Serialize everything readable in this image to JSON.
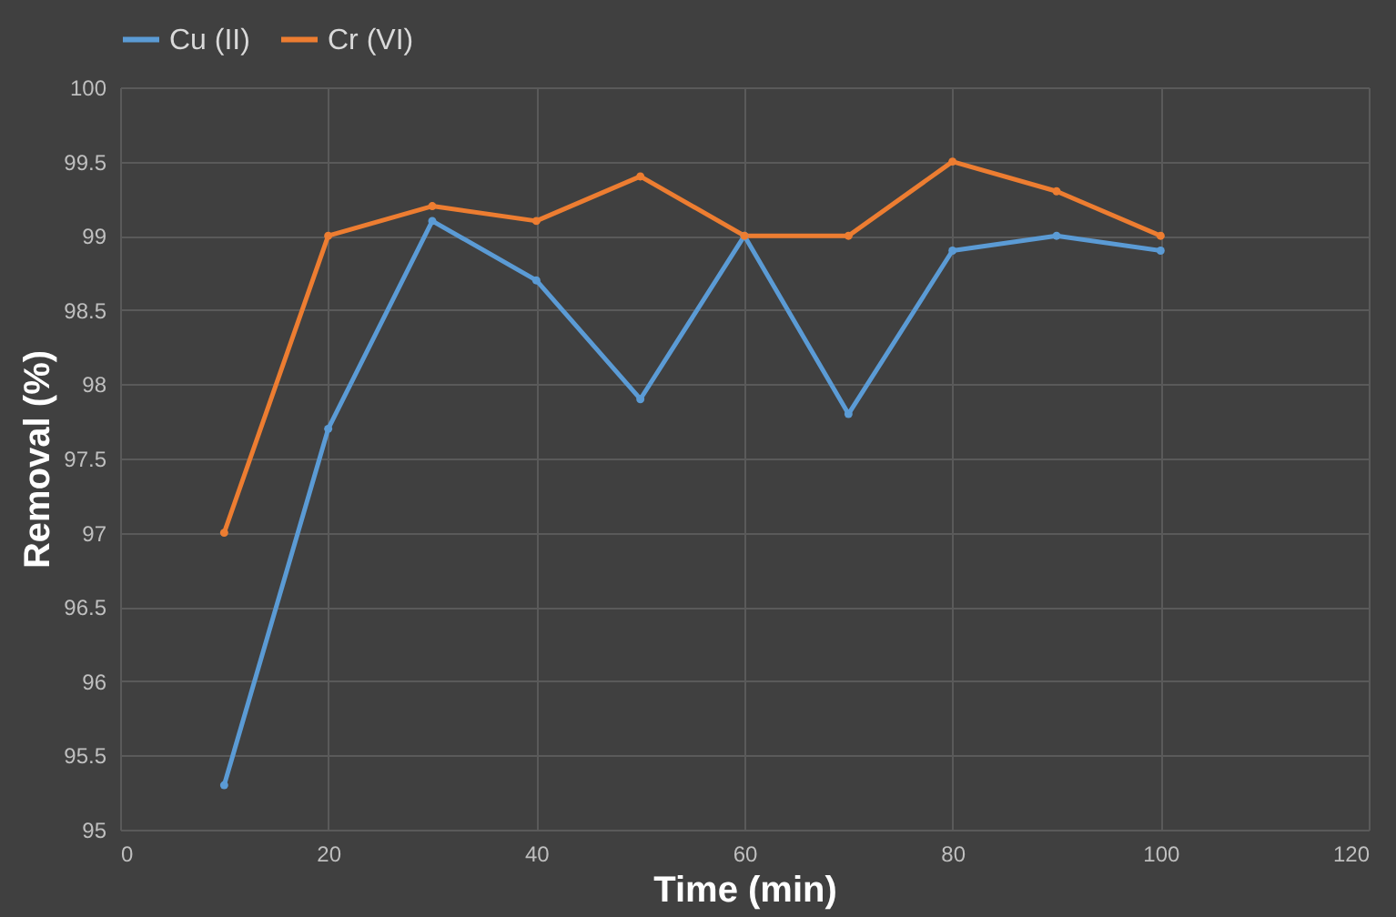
{
  "chart_data": {
    "type": "line",
    "xlabel": "Time (min)",
    "ylabel": "Removal (%)",
    "x": [
      10,
      20,
      30,
      40,
      50,
      60,
      70,
      80,
      90,
      100
    ],
    "series": [
      {
        "name": "Cu (II)",
        "color": "#5b9bd5",
        "values": [
          95.3,
          97.7,
          99.1,
          98.7,
          97.9,
          99.0,
          97.8,
          98.9,
          99.0,
          98.9
        ]
      },
      {
        "name": "Cr (VI)",
        "color": "#ed7d31",
        "values": [
          97.0,
          99.0,
          99.2,
          99.1,
          99.4,
          99.0,
          99.0,
          99.5,
          99.3,
          99.0
        ]
      }
    ],
    "xlim": [
      0,
      120
    ],
    "xticks": [
      0,
      20,
      40,
      60,
      80,
      100,
      120
    ],
    "ylim": [
      95,
      100
    ],
    "yticks": [
      95,
      95.5,
      96,
      96.5,
      97,
      97.5,
      98,
      98.5,
      99,
      99.5,
      100
    ],
    "grid": true,
    "legend": "top",
    "marker": "circle",
    "line_style": "solid"
  }
}
